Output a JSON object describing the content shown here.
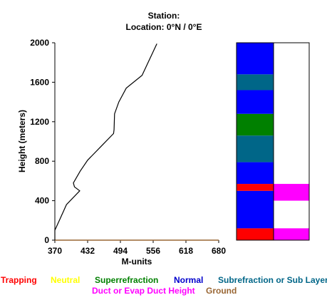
{
  "header": {
    "station": "Station:",
    "location": "Location:  0°N /  0°E"
  },
  "chart_data": {
    "type": "line",
    "xlabel": "M-units",
    "ylabel": "Height (meters)",
    "xlim": [
      370,
      680
    ],
    "ylim": [
      0,
      2000
    ],
    "xticks": [
      "370",
      "432",
      "494",
      "556",
      "618",
      "680"
    ],
    "yticks": [
      "0",
      "400",
      "800",
      "1200",
      "1600",
      "2000"
    ],
    "series": [
      {
        "color": "#000000",
        "points": [
          [
            370,
            0
          ],
          [
            370,
            100
          ],
          [
            381,
            230
          ],
          [
            392,
            360
          ],
          [
            417,
            500
          ],
          [
            407,
            540
          ],
          [
            405,
            580
          ],
          [
            418,
            700
          ],
          [
            432,
            810
          ],
          [
            461,
            970
          ],
          [
            481,
            1080
          ],
          [
            482,
            1120
          ],
          [
            483,
            1280
          ],
          [
            491,
            1400
          ],
          [
            505,
            1540
          ],
          [
            535,
            1670
          ],
          [
            563,
            1990
          ]
        ]
      }
    ],
    "ground_line": {
      "color": "#996633",
      "y": 0
    },
    "layer_column": {
      "left": [
        {
          "from": 0,
          "to": 120,
          "color": "#ff0000"
        },
        {
          "from": 120,
          "to": 500,
          "color": "#0000ff"
        },
        {
          "from": 500,
          "to": 570,
          "color": "#ff0000"
        },
        {
          "from": 570,
          "to": 790,
          "color": "#0000ff"
        },
        {
          "from": 790,
          "to": 1060,
          "color": "#006688"
        },
        {
          "from": 1060,
          "to": 1280,
          "color": "#008000"
        },
        {
          "from": 1280,
          "to": 1520,
          "color": "#0000ff"
        },
        {
          "from": 1520,
          "to": 1680,
          "color": "#006688"
        },
        {
          "from": 1680,
          "to": 2000,
          "color": "#0000ff"
        }
      ],
      "right": [
        {
          "from": 0,
          "to": 120,
          "color": "#ff00ff"
        },
        {
          "from": 400,
          "to": 570,
          "color": "#ff00ff"
        }
      ]
    }
  },
  "legend": {
    "trapping": "Trapping",
    "neutral": "Neutral",
    "superrefraction": "Superrefraction",
    "normal": "Normal",
    "subrefraction": "Subrefraction or Sub Layer",
    "duct": "Duct or Evap Duct Height",
    "ground": "Ground",
    "colors": {
      "trapping": "#ff0000",
      "neutral": "#ffff00",
      "superrefraction": "#008000",
      "normal": "#0000cc",
      "subrefraction": "#006688",
      "duct": "#ff00ff",
      "ground": "#996633"
    }
  }
}
